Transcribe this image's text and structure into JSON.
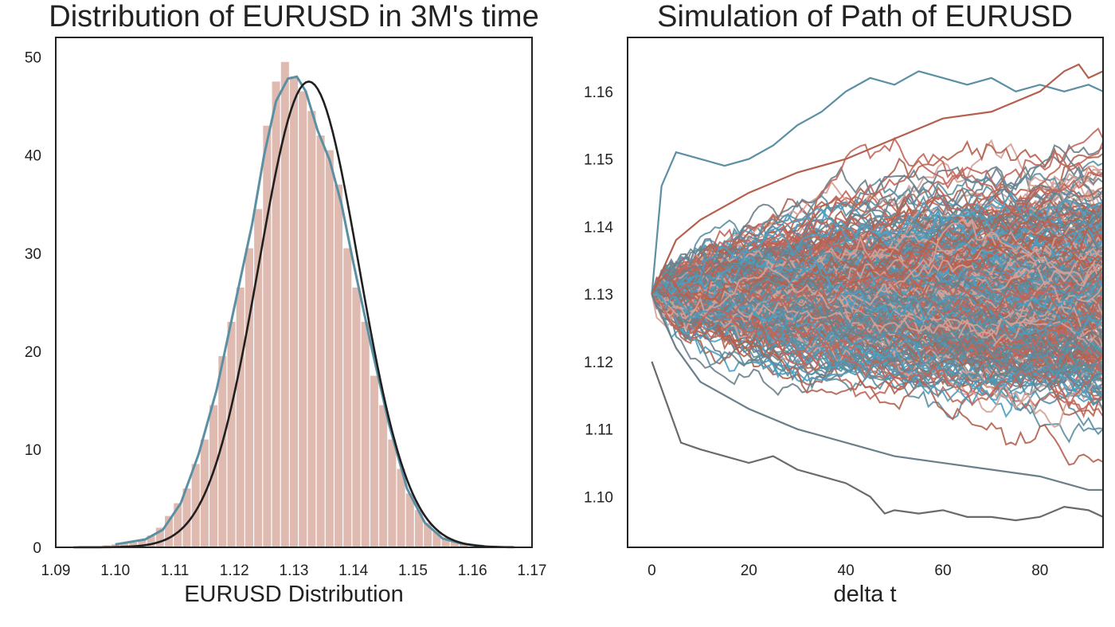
{
  "chart_data": [
    {
      "type": "bar",
      "title": "Distribution of EURUSD in 3M's time",
      "xlabel": "EURUSD Distribution",
      "ylabel": "",
      "xlim": [
        1.09,
        1.17
      ],
      "ylim": [
        0,
        52
      ],
      "xticks": [
        "1.09",
        "1.10",
        "1.11",
        "1.12",
        "1.13",
        "1.14",
        "1.15",
        "1.16",
        "1.17"
      ],
      "yticks": [
        "0",
        "10",
        "20",
        "30",
        "40",
        "50"
      ],
      "grid": false,
      "legend": "none",
      "histogram": {
        "bin_width": 0.0015,
        "bins": [
          {
            "x": 1.0985,
            "y": 0.2
          },
          {
            "x": 1.1,
            "y": 0.3
          },
          {
            "x": 1.1015,
            "y": 0.4
          },
          {
            "x": 1.103,
            "y": 0.5
          },
          {
            "x": 1.1045,
            "y": 0.8
          },
          {
            "x": 1.106,
            "y": 1.2
          },
          {
            "x": 1.1075,
            "y": 2.0
          },
          {
            "x": 1.109,
            "y": 3.2
          },
          {
            "x": 1.1105,
            "y": 4.5
          },
          {
            "x": 1.112,
            "y": 6.0
          },
          {
            "x": 1.1135,
            "y": 8.5
          },
          {
            "x": 1.115,
            "y": 11.0
          },
          {
            "x": 1.1165,
            "y": 14.5
          },
          {
            "x": 1.118,
            "y": 19.5
          },
          {
            "x": 1.1195,
            "y": 23.0
          },
          {
            "x": 1.121,
            "y": 26.5
          },
          {
            "x": 1.1225,
            "y": 30.5
          },
          {
            "x": 1.124,
            "y": 34.5
          },
          {
            "x": 1.1255,
            "y": 43.0
          },
          {
            "x": 1.127,
            "y": 47.5
          },
          {
            "x": 1.1285,
            "y": 49.5
          },
          {
            "x": 1.13,
            "y": 48.0
          },
          {
            "x": 1.1315,
            "y": 46.5
          },
          {
            "x": 1.133,
            "y": 44.5
          },
          {
            "x": 1.1345,
            "y": 42.0
          },
          {
            "x": 1.136,
            "y": 40.5
          },
          {
            "x": 1.1375,
            "y": 37.0
          },
          {
            "x": 1.139,
            "y": 30.5
          },
          {
            "x": 1.1405,
            "y": 26.5
          },
          {
            "x": 1.142,
            "y": 23.0
          },
          {
            "x": 1.1435,
            "y": 17.5
          },
          {
            "x": 1.145,
            "y": 14.5
          },
          {
            "x": 1.1465,
            "y": 11.0
          },
          {
            "x": 1.148,
            "y": 8.0
          },
          {
            "x": 1.1495,
            "y": 5.5
          },
          {
            "x": 1.151,
            "y": 3.8
          },
          {
            "x": 1.1525,
            "y": 2.5
          },
          {
            "x": 1.154,
            "y": 1.6
          },
          {
            "x": 1.1555,
            "y": 1.0
          },
          {
            "x": 1.157,
            "y": 0.6
          },
          {
            "x": 1.1585,
            "y": 0.3
          }
        ],
        "color": "#c98f7f"
      },
      "series": [
        {
          "kind": "kde",
          "color": "#5b8fa3",
          "x": [
            1.1,
            1.105,
            1.108,
            1.111,
            1.114,
            1.117,
            1.12,
            1.123,
            1.125,
            1.127,
            1.129,
            1.1305,
            1.132,
            1.134,
            1.136,
            1.138,
            1.14,
            1.143,
            1.146,
            1.149,
            1.152,
            1.155,
            1.158,
            1.162
          ],
          "y": [
            0.3,
            0.8,
            1.8,
            4.5,
            9.5,
            16,
            24.5,
            33,
            40,
            45.5,
            47.8,
            48,
            46.5,
            42.5,
            39.5,
            35,
            29,
            20.5,
            12.5,
            6,
            2.5,
            0.9,
            0.4,
            0.1
          ]
        },
        {
          "kind": "normal-fit",
          "color": "#1f1f1f",
          "mu": 1.1325,
          "sigma": 0.0084,
          "peak": 47.5,
          "x_range": [
            1.093,
            1.167
          ]
        }
      ]
    },
    {
      "type": "line",
      "title": "Simulation of Path of EURUSD",
      "xlabel": "delta t",
      "ylabel": "",
      "xlim": [
        -5,
        93
      ],
      "ylim": [
        1.0925,
        1.168
      ],
      "xticks": [
        "0",
        "20",
        "40",
        "60",
        "80"
      ],
      "yticks": [
        "1.10",
        "1.11",
        "1.12",
        "1.13",
        "1.14",
        "1.15",
        "1.16"
      ],
      "grid": false,
      "legend": "none",
      "simulation": {
        "n_paths": 420,
        "n_steps": 93,
        "start_value": 1.13,
        "daily_volatility": 0.00088,
        "colors": [
          "#b5604e",
          "#5b8fa3",
          "#6b7f8a",
          "#d4a197",
          "#4a9ec2",
          "#c2665a"
        ]
      },
      "highlighted_paths": [
        {
          "color": "#6a6a6a",
          "x": [
            0,
            3,
            6,
            10,
            15,
            20,
            25,
            30,
            35,
            40,
            45,
            48,
            50,
            55,
            60,
            65,
            70,
            75,
            80,
            85,
            90,
            93
          ],
          "y": [
            1.12,
            1.114,
            1.108,
            1.107,
            1.106,
            1.105,
            1.106,
            1.104,
            1.103,
            1.102,
            1.1,
            1.0975,
            1.098,
            1.0975,
            1.098,
            1.097,
            1.097,
            1.0965,
            1.097,
            1.0985,
            1.098,
            1.097
          ]
        },
        {
          "color": "#5b8fa3",
          "x": [
            0,
            2,
            5,
            10,
            15,
            20,
            25,
            30,
            35,
            40,
            45,
            50,
            55,
            60,
            65,
            70,
            75,
            80,
            85,
            90,
            93
          ],
          "y": [
            1.13,
            1.146,
            1.151,
            1.15,
            1.149,
            1.15,
            1.152,
            1.155,
            1.157,
            1.16,
            1.162,
            1.161,
            1.163,
            1.162,
            1.161,
            1.162,
            1.16,
            1.161,
            1.16,
            1.161,
            1.16
          ]
        },
        {
          "color": "#b5604e",
          "x": [
            0,
            5,
            10,
            20,
            30,
            40,
            50,
            60,
            70,
            80,
            85,
            88,
            90,
            93
          ],
          "y": [
            1.13,
            1.138,
            1.141,
            1.145,
            1.148,
            1.15,
            1.153,
            1.156,
            1.157,
            1.16,
            1.163,
            1.164,
            1.162,
            1.163
          ]
        },
        {
          "color": "#6b7f8a",
          "x": [
            0,
            5,
            10,
            20,
            30,
            40,
            50,
            60,
            70,
            80,
            90,
            93
          ],
          "y": [
            1.13,
            1.122,
            1.117,
            1.113,
            1.11,
            1.108,
            1.106,
            1.105,
            1.104,
            1.103,
            1.101,
            1.101
          ]
        }
      ]
    }
  ]
}
